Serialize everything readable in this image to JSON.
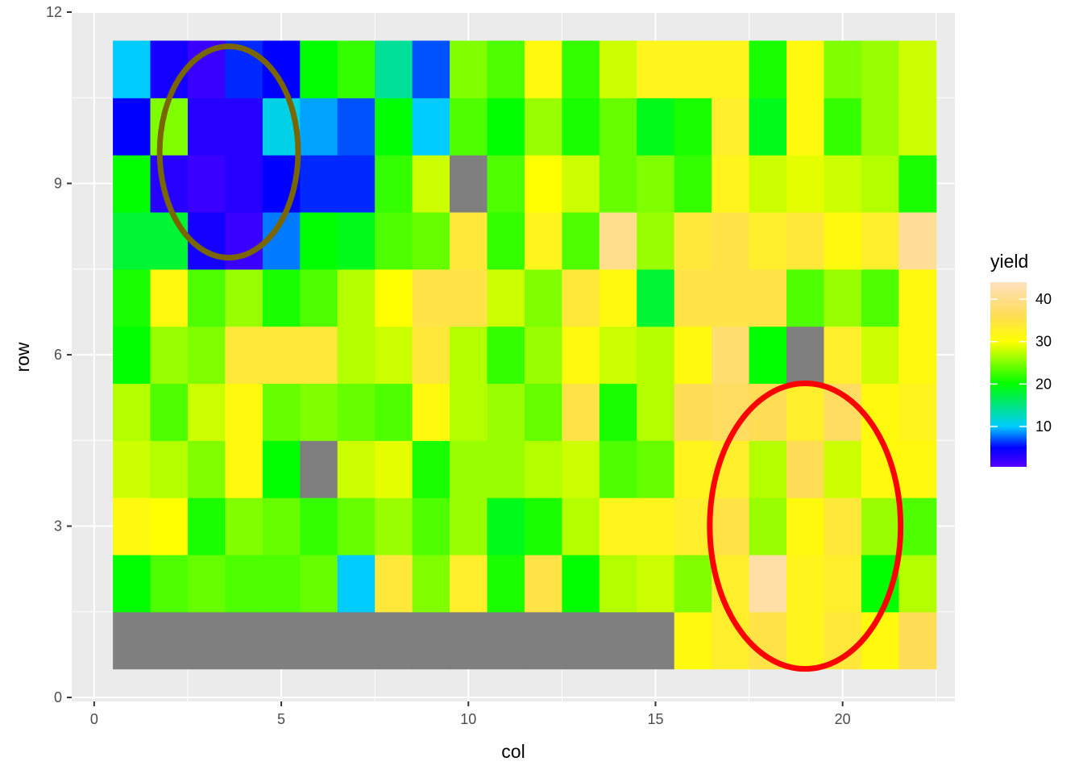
{
  "chart_data": {
    "type": "heatmap",
    "xlabel": "col",
    "ylabel": "row",
    "xlim": [
      -0.6,
      23.0
    ],
    "ylim": [
      -0.07,
      12.0
    ],
    "xticks": [
      0,
      5,
      10,
      15,
      20
    ],
    "yticks": [
      0,
      3,
      6,
      9,
      12
    ],
    "grid": true,
    "panel_background": "#ebebeb",
    "grid_color": "#ffffff",
    "missing_color": "#7f7f7f",
    "legend": {
      "title": "yield",
      "placement": "right",
      "range": [
        0.5,
        44
      ],
      "ticks": [
        10,
        20,
        30,
        40
      ],
      "colors": [
        "#5500ff",
        "#0000ff",
        "#00ccff",
        "#00ff00",
        "#ffff00",
        "#ffdd55",
        "#ffe0c0"
      ],
      "color_stops": [
        0.5,
        5,
        10,
        20,
        30,
        36,
        44
      ]
    },
    "rows": [
      1,
      2,
      3,
      4,
      5,
      6,
      7,
      8,
      9,
      10,
      11
    ],
    "cols": [
      1,
      2,
      3,
      4,
      5,
      6,
      7,
      8,
      9,
      10,
      11,
      12,
      13,
      14,
      15,
      16,
      17,
      18,
      19,
      20,
      21,
      22
    ],
    "values": [
      [
        null,
        null,
        null,
        null,
        null,
        null,
        null,
        null,
        null,
        null,
        null,
        null,
        null,
        null,
        null,
        31,
        33,
        35,
        32,
        34,
        31,
        36
      ],
      [
        20,
        23,
        24,
        23,
        23,
        24,
        10,
        34,
        25,
        33,
        21,
        35,
        20,
        27,
        28,
        25,
        33,
        42,
        32,
        33,
        20,
        27
      ],
      [
        31,
        30,
        21,
        25,
        24,
        22,
        24,
        26,
        23,
        26,
        19,
        21,
        27,
        32,
        32,
        33,
        35,
        26,
        31,
        34,
        26,
        23
      ],
      [
        28,
        27,
        25,
        31,
        20,
        null,
        28,
        29,
        21,
        26,
        26,
        27,
        28,
        23,
        24,
        32,
        33,
        27,
        36,
        28,
        31,
        31
      ],
      [
        27,
        23,
        28,
        31,
        24,
        25,
        24,
        23,
        31,
        27,
        26,
        24,
        35,
        21,
        27,
        36,
        37,
        36,
        33,
        37,
        31,
        32
      ],
      [
        20,
        26,
        25,
        34,
        34,
        34,
        27,
        28,
        34,
        27,
        22,
        26,
        31,
        28,
        27,
        31,
        38,
        20,
        null,
        33,
        28,
        31
      ],
      [
        21,
        31,
        23,
        26,
        21,
        23,
        27,
        30,
        35,
        35,
        28,
        25,
        34,
        31,
        18,
        35,
        35,
        35,
        23,
        26,
        23,
        31
      ],
      [
        18,
        18,
        4,
        2,
        8,
        20,
        19,
        23,
        24,
        34,
        22,
        32,
        23,
        40,
        26,
        34,
        35,
        33,
        34,
        31,
        33,
        41
      ],
      [
        20,
        3,
        2,
        3,
        5,
        6,
        6,
        22,
        28,
        null,
        23,
        30,
        28,
        24,
        25,
        22,
        32,
        28,
        29,
        28,
        27,
        21
      ],
      [
        5,
        25,
        3,
        3,
        11,
        9,
        7,
        20,
        10,
        23,
        20,
        26,
        21,
        24,
        19,
        21,
        33,
        19,
        31,
        22,
        26,
        28
      ],
      [
        10,
        4,
        2,
        6,
        5,
        20,
        22,
        14,
        7,
        25,
        23,
        31,
        22,
        28,
        32,
        32,
        32,
        21,
        31,
        25,
        26,
        28
      ]
    ],
    "annotations": [
      {
        "shape": "ellipse",
        "color": "#7a6600",
        "cx": 3.6,
        "cy": 9.55,
        "rx": 1.85,
        "ry": 1.85
      },
      {
        "shape": "ellipse",
        "color": "#ff0000",
        "cx": 19.0,
        "cy": 3.0,
        "rx": 2.55,
        "ry": 2.5
      }
    ]
  }
}
